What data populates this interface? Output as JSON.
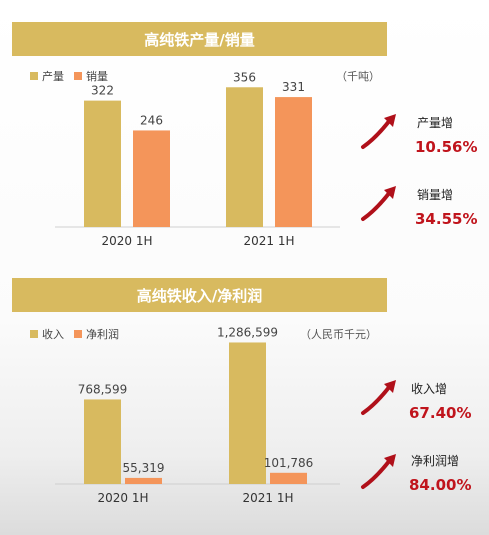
{
  "colors": {
    "primary": "#d8ba5f",
    "secondary": "#f4955a",
    "growth": "#c0141c"
  },
  "section1": {
    "title": "高纯铁产量/销量",
    "legend": [
      "产量",
      "销量"
    ],
    "unit": "（千吨）",
    "growth": [
      {
        "label": "产量增",
        "value": "10.56%"
      },
      {
        "label": "销量增",
        "value": "34.55%"
      }
    ]
  },
  "section2": {
    "title": "高纯铁收入/净利润",
    "legend": [
      "收入",
      "净利润"
    ],
    "unit": "（人民币千元）",
    "growth": [
      {
        "label": "收入增",
        "value": "67.40%"
      },
      {
        "label": "净利润增",
        "value": "84.00%"
      }
    ]
  },
  "chart_data": [
    {
      "type": "bar",
      "title": "高纯铁产量/销量",
      "categories": [
        "2020 1H",
        "2021 1H"
      ],
      "series": [
        {
          "name": "产量",
          "values": [
            322,
            356
          ],
          "labels": [
            "322",
            "356"
          ]
        },
        {
          "name": "销量",
          "values": [
            246,
            331
          ],
          "labels": [
            "246",
            "331"
          ]
        }
      ],
      "ylim": [
        0,
        400
      ],
      "unit": "（千吨）",
      "grid": false,
      "legend": "top-left"
    },
    {
      "type": "bar",
      "title": "高纯铁收入/净利润",
      "categories": [
        "2020 1H",
        "2021 1H"
      ],
      "series": [
        {
          "name": "收入",
          "values": [
            768599,
            1286599
          ],
          "labels": [
            "768,599",
            "1,286,599"
          ]
        },
        {
          "name": "净利润",
          "values": [
            55319,
            101786
          ],
          "labels": [
            "55,319",
            "101,786"
          ]
        }
      ],
      "ylim": [
        0,
        1400000
      ],
      "unit": "（人民币千元）",
      "grid": false,
      "legend": "top-left"
    }
  ]
}
